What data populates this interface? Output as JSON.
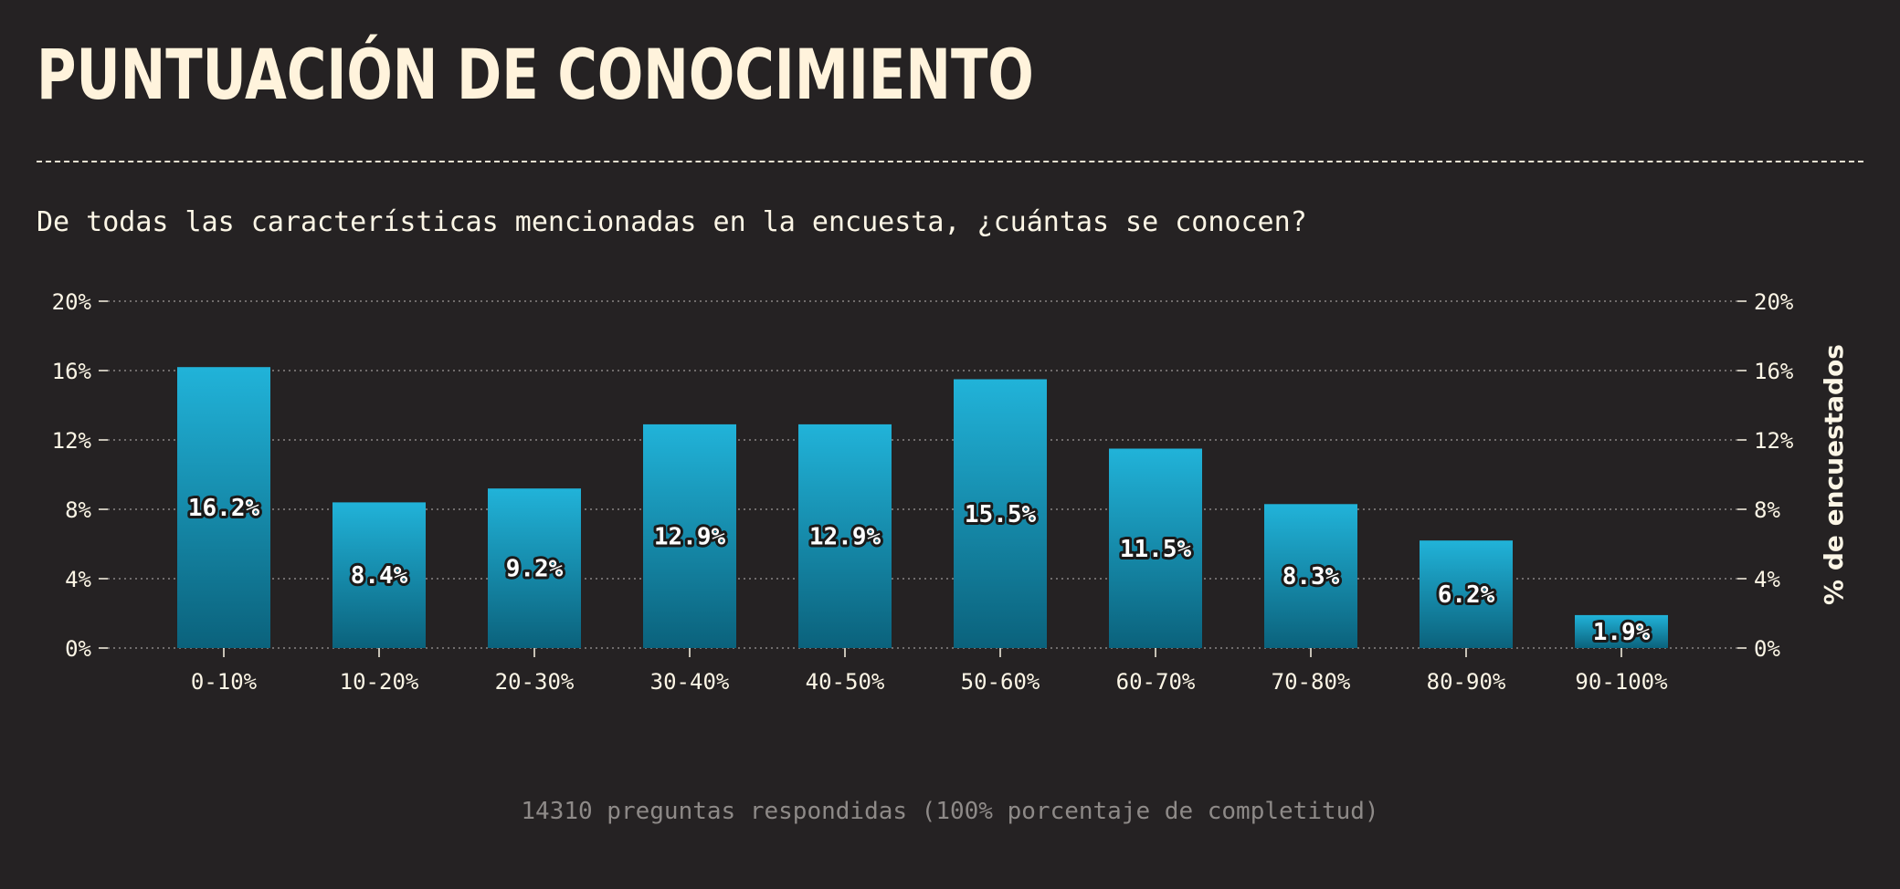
{
  "title": "PUNTUACIÓN DE CONOCIMIENTO",
  "subtitle": "De todas las características mencionadas en la encuesta, ¿cuántas se conocen?",
  "footnote": "14310 preguntas respondidas (100% porcentaje de completitud)",
  "colors": {
    "background": "#252223",
    "bar_top": "#21b3d9",
    "bar_bottom": "#0b627c",
    "grid": "#8a8584",
    "text": "#fcf6e6"
  },
  "chart_data": {
    "type": "bar",
    "title": "PUNTUACIÓN DE CONOCIMIENTO",
    "subtitle": "De todas las características mencionadas en la encuesta, ¿cuántas se conocen?",
    "xlabel": "",
    "ylabel": "% de encuestados",
    "categories": [
      "0-10%",
      "10-20%",
      "20-30%",
      "30-40%",
      "40-50%",
      "50-60%",
      "60-70%",
      "70-80%",
      "80-90%",
      "90-100%"
    ],
    "values": [
      16.2,
      8.4,
      9.2,
      12.9,
      12.9,
      15.5,
      11.5,
      8.3,
      6.2,
      1.9
    ],
    "data_labels": [
      "16.2%",
      "8.4%",
      "9.2%",
      "12.9%",
      "12.9%",
      "15.5%",
      "11.5%",
      "8.3%",
      "6.2%",
      "1.9%"
    ],
    "ylim": [
      0,
      20
    ],
    "yticks": [
      0,
      4,
      8,
      12,
      16,
      20
    ],
    "ytick_labels": [
      "0%",
      "4%",
      "8%",
      "12%",
      "16%",
      "20%"
    ],
    "grid": true,
    "grid_style": "dotted",
    "dual_y_axis": true,
    "legend": "none"
  }
}
